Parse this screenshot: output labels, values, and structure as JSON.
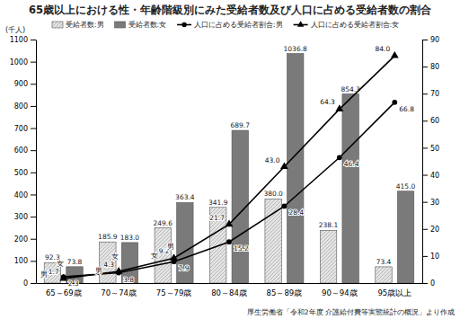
{
  "chart_data": {
    "type": "bar",
    "title": "65歳以上における性・年齢階級別にみた受給者数及び人口に占める受給者数の割合",
    "y_label": "(千人)",
    "source": "厚生労働省「令和2年度 介護給付費等実態統計の概況」より作成",
    "categories": [
      "65～69歳",
      "70～74歳",
      "75～79歳",
      "80～84歳",
      "85～89歳",
      "90～94歳",
      "95歳以上"
    ],
    "series": [
      {
        "name": "受給者数:男",
        "type": "bar",
        "color": "#e4e4e4",
        "values": [
          92.3,
          185.9,
          249.6,
          341.9,
          380.0,
          238.1,
          73.4
        ],
        "value_labels": [
          "92.3",
          "185.9",
          "249.6",
          "341.9",
          "380.0",
          "238.1",
          "73.4"
        ]
      },
      {
        "name": "受給者数:女",
        "type": "bar",
        "color": "#7a7a7a",
        "values": [
          73.8,
          183.0,
          363.4,
          689.7,
          1036.8,
          854.3,
          415.0
        ],
        "value_labels": [
          "73.8",
          "183.0",
          "363.4",
          "689.7",
          "1036.8",
          "854.3",
          "415.0"
        ]
      },
      {
        "name": "人口に占める受給者割合:男",
        "type": "line",
        "axis": "y2",
        "color": "#000000",
        "marker": "circle",
        "values": [
          2.3,
          3.8,
          7.9,
          15.2,
          28.4,
          46.4,
          66.8
        ],
        "value_labels": [
          "2.3",
          "3.8",
          "7.9",
          "15.2",
          "28.4",
          "46.4",
          "66.8"
        ]
      },
      {
        "name": "人口に占める受給者割合:女",
        "type": "line",
        "axis": "y2",
        "color": "#000000",
        "marker": "triangle",
        "values": [
          1.7,
          4.3,
          9.2,
          21.7,
          43.0,
          64.3,
          84.0
        ],
        "value_labels": [
          "1.7",
          "4.3",
          "9.2",
          "21.7",
          "43.0",
          "64.3",
          "84.0"
        ]
      }
    ],
    "annotations": [
      {
        "text": "男",
        "x": "65～69歳",
        "y": 2.3
      },
      {
        "text": "女",
        "x": "65～69歳",
        "y": 1.7
      },
      {
        "text": "男",
        "x": "70～74歳",
        "y": 3.8
      },
      {
        "text": "女",
        "x": "70～74歳",
        "y": 4.3
      },
      {
        "text": "女",
        "x": "75～79歳",
        "y": 9.2
      },
      {
        "text": "男",
        "x": "75～79歳",
        "y": 7.9
      }
    ],
    "ylim": [
      0,
      1100
    ],
    "yticks": [
      0,
      100,
      200,
      300,
      400,
      500,
      600,
      700,
      800,
      900,
      1000,
      1100
    ],
    "y2lim": [
      0,
      90
    ],
    "y2ticks": [
      0,
      10,
      20,
      30,
      40,
      50,
      60,
      70,
      80,
      90
    ],
    "grid": false,
    "legend": "top-left",
    "data_labels": true
  }
}
